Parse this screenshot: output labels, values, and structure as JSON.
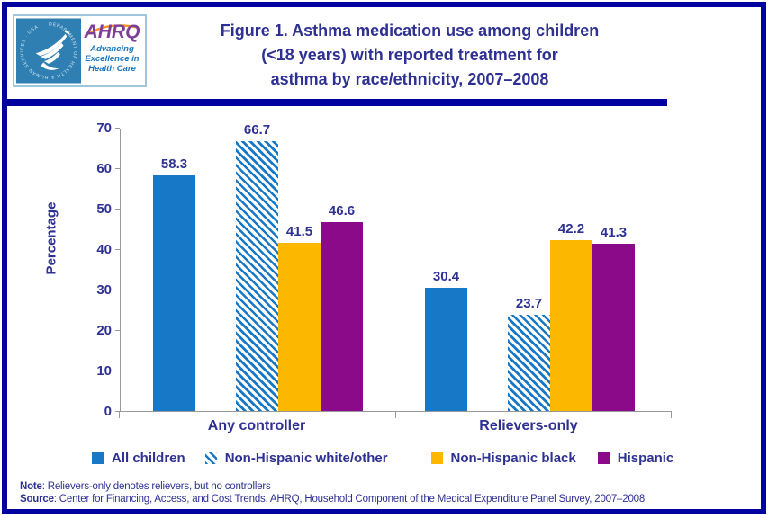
{
  "header": {
    "title_lines": [
      "Figure 1. Asthma medication use among children",
      "(<18 years) with reported treatment for",
      "asthma by race/ethnicity, 2007–2008"
    ],
    "logo": {
      "org_abbr": "AHRQ",
      "tagline_lines": [
        "Advancing",
        "Excellence in",
        "Health Care"
      ],
      "seal_text": "DEPARTMENT OF HEALTH & HUMAN SERVICES · USA"
    }
  },
  "chart_data": {
    "type": "bar",
    "categories": [
      "Any controller",
      "Relievers-only"
    ],
    "series": [
      {
        "name": "All children",
        "values": [
          58.3,
          30.4
        ],
        "color": "#1878C8",
        "pattern": "solid"
      },
      {
        "name": "Non-Hispanic white/other",
        "values": [
          66.7,
          23.7
        ],
        "color": "#1878C8",
        "pattern": "diagonal-hatch"
      },
      {
        "name": "Non-Hispanic black",
        "values": [
          41.5,
          42.2
        ],
        "color": "#FCB800",
        "pattern": "solid"
      },
      {
        "name": "Hispanic",
        "values": [
          46.6,
          41.3
        ],
        "color": "#8A0A8A",
        "pattern": "solid"
      }
    ],
    "ylabel": "Percentage",
    "xlabel": "",
    "ylim": [
      0,
      70
    ],
    "yticks": [
      0,
      10,
      20,
      30,
      40,
      50,
      60,
      70
    ],
    "grid": false,
    "legend_position": "bottom",
    "data_labels": true
  },
  "notes": {
    "note_label": "Note",
    "note_text": ": Relievers-only denotes relievers, but no controllers",
    "source_label": "Source",
    "source_text": ": Center for Financing, Access, and Cost Trends, AHRQ, Household Component of the Medical Expenditure Panel Survey, 2007–2008"
  },
  "colors": {
    "frame_navy": "#0101A0",
    "text_navy": "#2E3192",
    "axis_gray": "#999999",
    "seal_teal": "#2F7FB2",
    "ahrq_purple": "#7D3F98",
    "ahrq_orange": "#F7941D",
    "tagline_blue": "#1B75BC"
  }
}
